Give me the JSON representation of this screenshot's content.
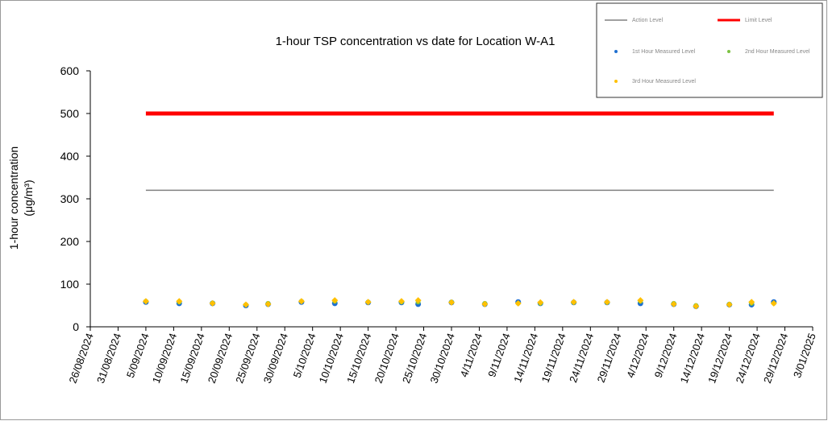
{
  "chart_data": {
    "type": "scatter",
    "title": "1-hour TSP concentration vs date for Location W-A1",
    "y_label": [
      "1-hour concentration",
      "(μg/m³)"
    ],
    "xlim": [
      "2024-08-26",
      "2025-01-03"
    ],
    "xticks": [
      {
        "value": "2024-08-26",
        "label": "26/08/2024"
      },
      {
        "value": "2024-08-31",
        "label": "31/08/2024"
      },
      {
        "value": "2024-09-05",
        "label": "5/09/2024"
      },
      {
        "value": "2024-09-10",
        "label": "10/09/2024"
      },
      {
        "value": "2024-09-15",
        "label": "15/09/2024"
      },
      {
        "value": "2024-09-20",
        "label": "20/09/2024"
      },
      {
        "value": "2024-09-25",
        "label": "25/09/2024"
      },
      {
        "value": "2024-09-30",
        "label": "30/09/2024"
      },
      {
        "value": "2024-10-05",
        "label": "5/10/2024"
      },
      {
        "value": "2024-10-10",
        "label": "10/10/2024"
      },
      {
        "value": "2024-10-15",
        "label": "15/10/2024"
      },
      {
        "value": "2024-10-20",
        "label": "20/10/2024"
      },
      {
        "value": "2024-10-25",
        "label": "25/10/2024"
      },
      {
        "value": "2024-10-30",
        "label": "30/10/2024"
      },
      {
        "value": "2024-11-04",
        "label": "4/11/2024"
      },
      {
        "value": "2024-11-09",
        "label": "9/11/2024"
      },
      {
        "value": "2024-11-14",
        "label": "14/11/2024"
      },
      {
        "value": "2024-11-19",
        "label": "19/11/2024"
      },
      {
        "value": "2024-11-24",
        "label": "24/11/2024"
      },
      {
        "value": "2024-11-29",
        "label": "29/11/2024"
      },
      {
        "value": "2024-12-04",
        "label": "4/12/2024"
      },
      {
        "value": "2024-12-09",
        "label": "9/12/2024"
      },
      {
        "value": "2024-12-14",
        "label": "14/12/2024"
      },
      {
        "value": "2024-12-19",
        "label": "19/12/2024"
      },
      {
        "value": "2024-12-24",
        "label": "24/12/2024"
      },
      {
        "value": "2024-12-29",
        "label": "29/12/2024"
      },
      {
        "value": "2025-01-03",
        "label": "3/01/2025"
      }
    ],
    "ylim": [
      0,
      600
    ],
    "yticks": [
      0,
      100,
      200,
      300,
      400,
      500,
      600
    ],
    "series": [
      {
        "name": "Action Level",
        "color": "#808080",
        "style": "line",
        "width": 1.5,
        "x": [
          "2024-09-05",
          "2024-12-27"
        ],
        "values": [
          320,
          320
        ]
      },
      {
        "name": "Limit Level",
        "color": "#ff0000",
        "style": "line",
        "width": 5,
        "x": [
          "2024-09-05",
          "2024-12-27"
        ],
        "values": [
          500,
          500
        ]
      },
      {
        "name": "1st Hour Measured Level",
        "color": "#1f6fd0",
        "style": "marker",
        "x": [
          "2024-09-05",
          "2024-09-11",
          "2024-09-17",
          "2024-09-23",
          "2024-09-27",
          "2024-10-03",
          "2024-10-09",
          "2024-10-15",
          "2024-10-21",
          "2024-10-24",
          "2024-10-30",
          "2024-11-05",
          "2024-11-11",
          "2024-11-15",
          "2024-11-21",
          "2024-11-27",
          "2024-12-03",
          "2024-12-09",
          "2024-12-13",
          "2024-12-19",
          "2024-12-23",
          "2024-12-27"
        ],
        "values": [
          58,
          55,
          55,
          50,
          53,
          58,
          55,
          57,
          57,
          53,
          57,
          53,
          58,
          55,
          57,
          57,
          55,
          53,
          48,
          52,
          52,
          58
        ]
      },
      {
        "name": "2nd Hour Measured Level",
        "color": "#7cc242",
        "style": "marker",
        "x": [
          "2024-09-05",
          "2024-09-11",
          "2024-09-17",
          "2024-09-23",
          "2024-09-27",
          "2024-10-03",
          "2024-10-09",
          "2024-10-15",
          "2024-10-21",
          "2024-10-24",
          "2024-10-30",
          "2024-11-05",
          "2024-11-11",
          "2024-11-15",
          "2024-11-21",
          "2024-11-27",
          "2024-12-03",
          "2024-12-09",
          "2024-12-13",
          "2024-12-19",
          "2024-12-23",
          "2024-12-27"
        ],
        "values": [
          60,
          58,
          56,
          52,
          55,
          60,
          60,
          58,
          58,
          58,
          58,
          55,
          55,
          55,
          57,
          57,
          60,
          55,
          50,
          53,
          55,
          55
        ]
      },
      {
        "name": "3rd Hour Measured Level",
        "color": "#ffc000",
        "style": "marker",
        "x": [
          "2024-09-05",
          "2024-09-11",
          "2024-09-17",
          "2024-09-23",
          "2024-09-27",
          "2024-10-03",
          "2024-10-09",
          "2024-10-15",
          "2024-10-21",
          "2024-10-24",
          "2024-10-30",
          "2024-11-05",
          "2024-11-11",
          "2024-11-15",
          "2024-11-21",
          "2024-11-27",
          "2024-12-03",
          "2024-12-09",
          "2024-12-13",
          "2024-12-19",
          "2024-12-23",
          "2024-12-27"
        ],
        "values": [
          60,
          60,
          55,
          52,
          53,
          60,
          62,
          58,
          60,
          62,
          57,
          53,
          55,
          57,
          58,
          58,
          62,
          53,
          48,
          52,
          58,
          55
        ]
      }
    ]
  }
}
